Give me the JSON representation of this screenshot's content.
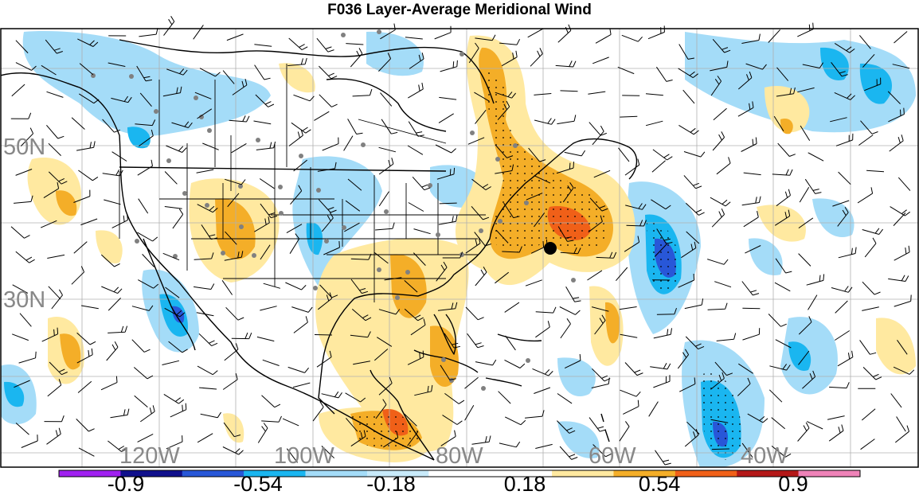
{
  "title": "F036 Layer-Average Meridional Wind",
  "lat_labels": [
    "50N",
    "30N"
  ],
  "lon_labels": [
    "120W",
    "100W",
    "80W",
    "60W",
    "40W"
  ],
  "colorbar": {
    "colors": [
      "#a020f0",
      "#10108c",
      "#2857d8",
      "#1ab6f0",
      "#a4dcf8",
      "#c8eafa",
      "#ffffff",
      "#ffffff",
      "#ffe9a0",
      "#f4ae28",
      "#f06018",
      "#b41818",
      "#ee82b8"
    ],
    "labels": [
      "-0.9",
      "-0.54",
      "-0.18",
      "0.18",
      "0.54",
      "0.9"
    ]
  },
  "colors": {
    "frame": "#000000",
    "grid": "#b0b0b0",
    "label": "#888888",
    "obs_dot": "#808080",
    "barb": "#000000"
  },
  "legend_icons": [
    "station-dot-icon",
    "wind-barb-icon",
    "storm-center-icon"
  ]
}
